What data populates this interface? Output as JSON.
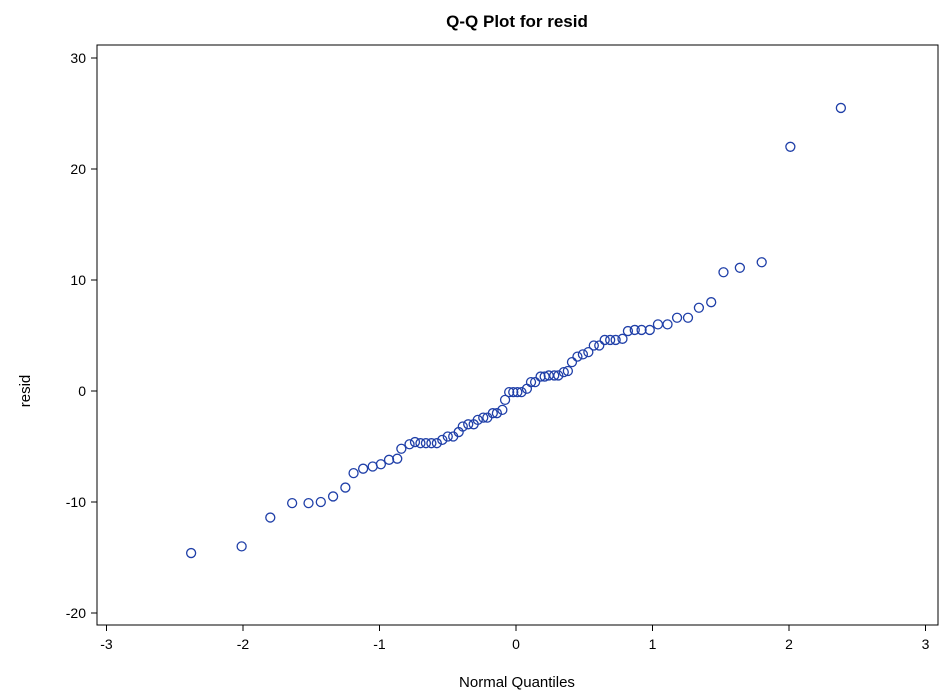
{
  "chart_data": {
    "type": "scatter",
    "title": "Q-Q Plot for resid",
    "xlabel": "Normal Quantiles",
    "ylabel": "resid",
    "xlim": [
      -3,
      3
    ],
    "ylim": [
      -20,
      30
    ],
    "xticks": [
      "-3",
      "-2",
      "-1",
      "0",
      "1",
      "2",
      "3"
    ],
    "yticks": [
      "-20",
      "-10",
      "0",
      "10",
      "20",
      "30"
    ],
    "grid": false,
    "legend": "none",
    "marker_color": "#1f3fa8",
    "points": [
      [
        -2.38,
        -14.6
      ],
      [
        -2.01,
        -14.0
      ],
      [
        -1.8,
        -11.4
      ],
      [
        -1.64,
        -10.1
      ],
      [
        -1.52,
        -10.1
      ],
      [
        -1.43,
        -10.0
      ],
      [
        -1.34,
        -9.5
      ],
      [
        -1.25,
        -8.7
      ],
      [
        -1.19,
        -7.4
      ],
      [
        -1.12,
        -7.0
      ],
      [
        -1.05,
        -6.8
      ],
      [
        -0.99,
        -6.6
      ],
      [
        -0.93,
        -6.2
      ],
      [
        -0.87,
        -6.1
      ],
      [
        -0.84,
        -5.2
      ],
      [
        -0.78,
        -4.8
      ],
      [
        -0.74,
        -4.6
      ],
      [
        -0.7,
        -4.7
      ],
      [
        -0.66,
        -4.7
      ],
      [
        -0.62,
        -4.7
      ],
      [
        -0.58,
        -4.7
      ],
      [
        -0.54,
        -4.4
      ],
      [
        -0.5,
        -4.1
      ],
      [
        -0.46,
        -4.1
      ],
      [
        -0.42,
        -3.7
      ],
      [
        -0.39,
        -3.2
      ],
      [
        -0.35,
        -3.0
      ],
      [
        -0.31,
        -3.0
      ],
      [
        -0.28,
        -2.6
      ],
      [
        -0.24,
        -2.4
      ],
      [
        -0.21,
        -2.4
      ],
      [
        -0.17,
        -2.0
      ],
      [
        -0.14,
        -2.0
      ],
      [
        -0.1,
        -1.7
      ],
      [
        -0.08,
        -0.8
      ],
      [
        -0.05,
        -0.1
      ],
      [
        -0.02,
        -0.1
      ],
      [
        0.01,
        -0.1
      ],
      [
        0.04,
        -0.1
      ],
      [
        0.08,
        0.2
      ],
      [
        0.11,
        0.8
      ],
      [
        0.14,
        0.8
      ],
      [
        0.18,
        1.3
      ],
      [
        0.21,
        1.3
      ],
      [
        0.24,
        1.4
      ],
      [
        0.28,
        1.4
      ],
      [
        0.31,
        1.4
      ],
      [
        0.35,
        1.7
      ],
      [
        0.38,
        1.8
      ],
      [
        0.41,
        2.6
      ],
      [
        0.45,
        3.1
      ],
      [
        0.49,
        3.3
      ],
      [
        0.53,
        3.5
      ],
      [
        0.57,
        4.1
      ],
      [
        0.61,
        4.1
      ],
      [
        0.65,
        4.6
      ],
      [
        0.69,
        4.6
      ],
      [
        0.73,
        4.6
      ],
      [
        0.78,
        4.7
      ],
      [
        0.82,
        5.4
      ],
      [
        0.87,
        5.5
      ],
      [
        0.92,
        5.5
      ],
      [
        0.98,
        5.5
      ],
      [
        1.04,
        6.0
      ],
      [
        1.11,
        6.0
      ],
      [
        1.18,
        6.6
      ],
      [
        1.26,
        6.6
      ],
      [
        1.34,
        7.5
      ],
      [
        1.43,
        8.0
      ],
      [
        1.52,
        10.7
      ],
      [
        1.64,
        11.1
      ],
      [
        1.8,
        11.6
      ],
      [
        2.01,
        22.0
      ],
      [
        2.38,
        25.5
      ]
    ]
  }
}
